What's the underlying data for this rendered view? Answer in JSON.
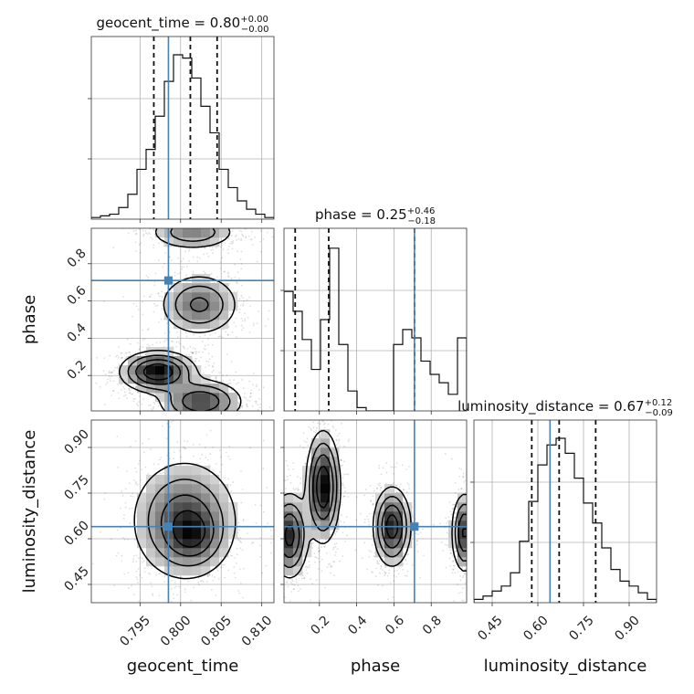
{
  "chart_data": {
    "type": "corner",
    "truth_color": "#4682b4",
    "parameters": [
      {
        "name": "geocent_time",
        "title": {
          "prefix": "geocent_time = 0.80",
          "sup": "+0.00",
          "sub": "−0.00"
        },
        "range": [
          0.789,
          0.8115
        ],
        "ticks": [
          0.795,
          0.8,
          0.805,
          0.81
        ],
        "tick_labels": [
          "0.795",
          "0.800",
          "0.805",
          "0.810"
        ],
        "truth": 0.7985,
        "quantiles": [
          0.7967,
          0.8012,
          0.8045
        ],
        "histogram": [
          0.01,
          0.02,
          0.03,
          0.07,
          0.15,
          0.3,
          0.42,
          0.62,
          0.83,
          0.99,
          0.97,
          0.85,
          0.68,
          0.52,
          0.3,
          0.19,
          0.11,
          0.06,
          0.03,
          0.01
        ]
      },
      {
        "name": "phase",
        "title": {
          "prefix": "phase = 0.25",
          "sup": "+0.46",
          "sub": "−0.18"
        },
        "range": [
          0.01,
          0.99
        ],
        "ticks": [
          0.2,
          0.4,
          0.6,
          0.8
        ],
        "tick_labels": [
          "0.2",
          "0.4",
          "0.6",
          "0.8"
        ],
        "truth": 0.71,
        "quantiles": [
          0.07,
          0.25,
          0.71
        ],
        "histogram": [
          0.72,
          0.6,
          0.43,
          0.25,
          0.55,
          0.98,
          0.4,
          0.12,
          0.02,
          0.0,
          0.0,
          0.0,
          0.4,
          0.49,
          0.44,
          0.3,
          0.22,
          0.17,
          0.1,
          0.44
        ]
      },
      {
        "name": "luminosity_distance",
        "title": {
          "prefix": "luminosity_distance = 0.67",
          "sup": "+0.12",
          "sub": "−0.09"
        },
        "range": [
          0.39,
          0.99
        ],
        "ticks": [
          0.45,
          0.6,
          0.75,
          0.9
        ],
        "tick_labels": [
          "0.45",
          "0.60",
          "0.75",
          "0.90"
        ],
        "truth": 0.64,
        "quantiles": [
          0.58,
          0.67,
          0.79
        ],
        "histogram": [
          0.02,
          0.04,
          0.07,
          0.1,
          0.18,
          0.37,
          0.61,
          0.83,
          0.95,
          0.99,
          0.9,
          0.75,
          0.6,
          0.48,
          0.33,
          0.2,
          0.13,
          0.1,
          0.06,
          0.02
        ]
      }
    ],
    "panels": [
      {
        "x": "geocent_time",
        "y": "phase",
        "y_ticks": [
          0.2,
          0.4,
          0.6,
          0.8
        ],
        "blobs": [
          {
            "cx": 0.7972,
            "cy": 0.22,
            "sx": 0.0023,
            "sy": 0.055,
            "peak": 1.0
          },
          {
            "cx": 0.8023,
            "cy": 0.58,
            "sx": 0.0025,
            "sy": 0.085,
            "peak": 0.55
          },
          {
            "cx": 0.8025,
            "cy": 0.06,
            "sx": 0.0026,
            "sy": 0.06,
            "peak": 0.72
          },
          {
            "cx": 0.8015,
            "cy": 0.97,
            "sx": 0.0028,
            "sy": 0.05,
            "peak": 0.45
          }
        ],
        "truth": [
          0.7985,
          0.71
        ]
      },
      {
        "x": "geocent_time",
        "y": "luminosity_distance",
        "y_ticks": [
          0.45,
          0.6,
          0.75,
          0.9
        ],
        "blobs": [
          {
            "cx": 0.8005,
            "cy": 0.66,
            "sx": 0.0033,
            "sy": 0.1,
            "peak": 1.0
          },
          {
            "cx": 0.8015,
            "cy": 0.61,
            "sx": 0.0018,
            "sy": 0.05,
            "peak": 0.55
          }
        ],
        "truth": [
          0.7985,
          0.64
        ]
      },
      {
        "x": "phase",
        "y": "luminosity_distance",
        "blobs": [
          {
            "cx": 0.22,
            "cy": 0.77,
            "sx": 0.045,
            "sy": 0.09,
            "peak": 0.95
          },
          {
            "cx": 0.04,
            "cy": 0.61,
            "sx": 0.05,
            "sy": 0.07,
            "peak": 0.8
          },
          {
            "cx": 0.59,
            "cy": 0.64,
            "sx": 0.05,
            "sy": 0.065,
            "peak": 0.85
          },
          {
            "cx": 0.98,
            "cy": 0.62,
            "sx": 0.035,
            "sy": 0.065,
            "peak": 0.75
          }
        ],
        "truth": [
          0.71,
          0.64
        ]
      }
    ]
  }
}
